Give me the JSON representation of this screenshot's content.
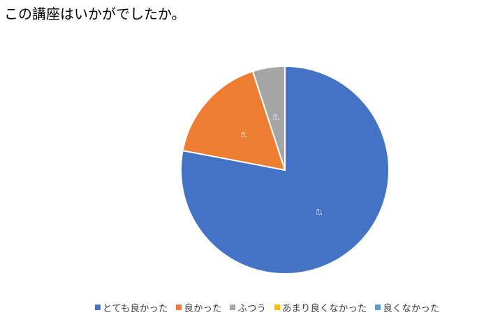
{
  "title": "この講座はいかがでしたか。",
  "chart_data": {
    "type": "pie",
    "title": "この講座はいかがでしたか。",
    "start_angle_deg": 0,
    "direction": "clockwise",
    "legend_position": "bottom",
    "categories": [
      "とても良かった",
      "良かった",
      "ふつう",
      "あまり良くなかった",
      "良くなかった"
    ],
    "values": [
      78,
      17,
      5,
      0,
      0
    ],
    "colors": [
      "#4472C4",
      "#ED7D31",
      "#A5A5A5",
      "#FFC000",
      "#5B9BD5"
    ],
    "data_labels": [
      "⍰,",
      "⍰,",
      "⍰,",
      "",
      ""
    ]
  }
}
